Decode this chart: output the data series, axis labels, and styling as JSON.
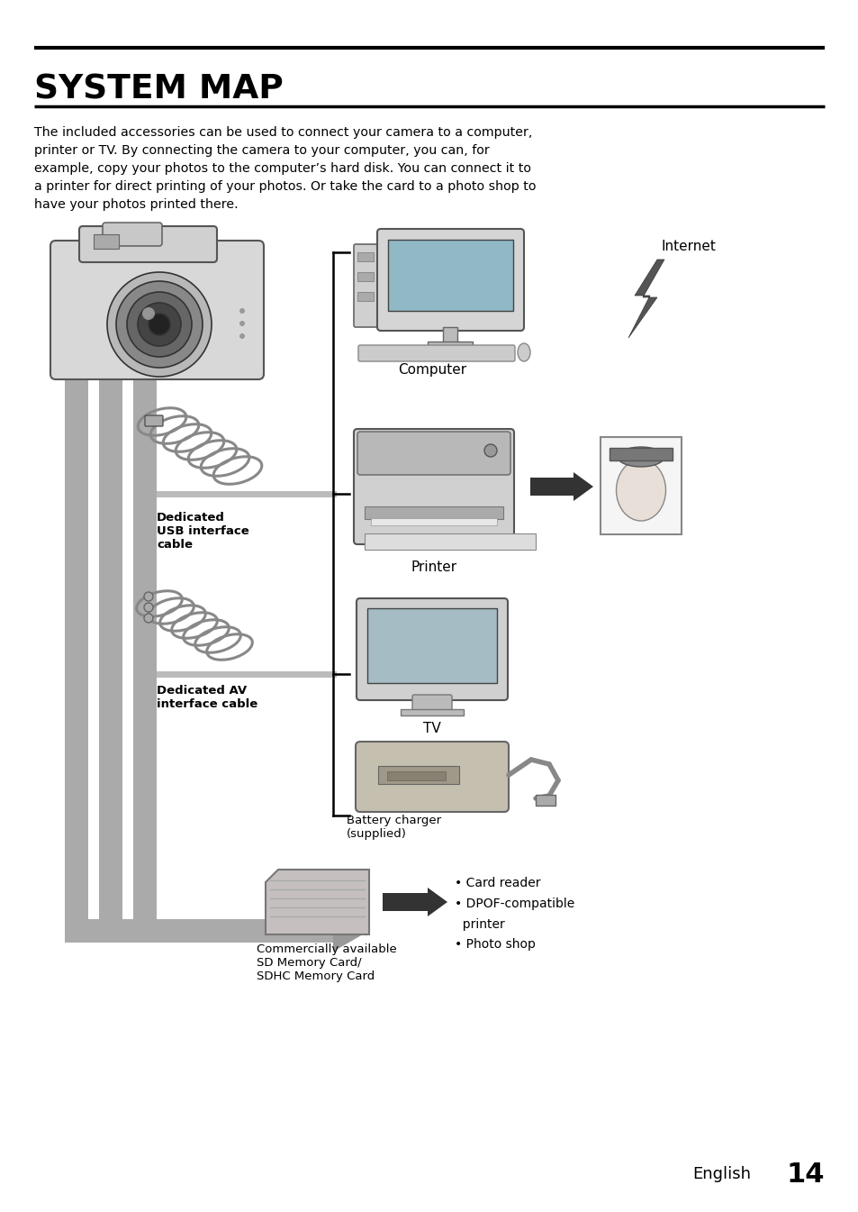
{
  "title": "SYSTEM MAP",
  "body_text": "The included accessories can be used to connect your camera to a computer,\nprinter or TV. By connecting the camera to your computer, you can, for\nexample, copy your photos to the computer’s hard disk. You can connect it to\na printer for direct printing of your photos. Or take the card to a photo shop to\nhave your photos printed there.",
  "labels": {
    "internet": "Internet",
    "computer": "Computer",
    "printer": "Printer",
    "tv": "TV",
    "battery_charger": "Battery charger\n(supplied)",
    "sd_card": "Commercially available\nSD Memory Card/\nSDHC Memory Card",
    "usb_cable": "Dedicated\nUSB interface\ncable",
    "av_cable": "Dedicated AV\ninterface cable",
    "card_reader": "• Card reader\n• DPOF-compatible\n  printer\n• Photo shop"
  },
  "footer": "English",
  "page_number": "14",
  "bg_color": "#ffffff",
  "text_color": "#000000"
}
